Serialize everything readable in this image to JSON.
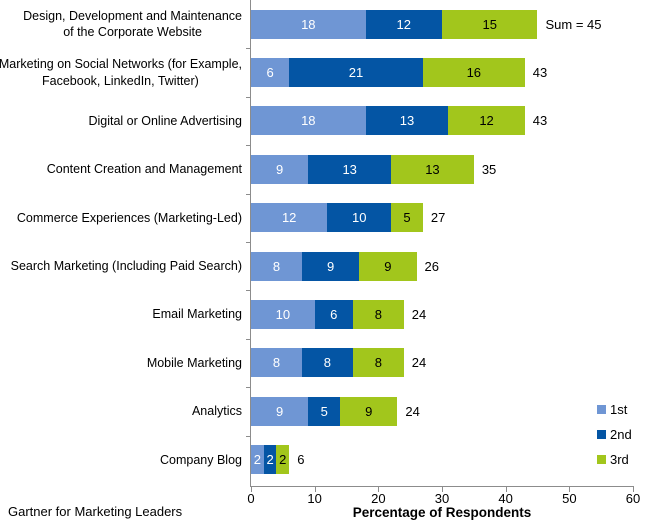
{
  "footer": "Gartner for Marketing Leaders",
  "chart_data": {
    "type": "bar",
    "orientation": "horizontal",
    "stacked": true,
    "title": "",
    "xlabel": "Percentage of Respondents",
    "ylabel": "",
    "xlim": [
      0,
      60
    ],
    "x_ticks": [
      0,
      10,
      20,
      30,
      40,
      50,
      60
    ],
    "grid": false,
    "legend_position": "right-bottom",
    "categories": [
      "Design, Development and Maintenance\nof the Corporate Website",
      "Marketing on Social Networks (for Example,\nFacebook, LinkedIn, Twitter)",
      "Digital or Online Advertising",
      "Content Creation and Management",
      "Commerce Experiences (Marketing-Led)",
      "Search Marketing (Including Paid Search)",
      "Email Marketing",
      "Mobile Marketing",
      "Analytics",
      "Company Blog"
    ],
    "series": [
      {
        "name": "1st",
        "color": "#6f96d4",
        "text_color": "#ffffff",
        "values": [
          18,
          6,
          18,
          9,
          12,
          8,
          10,
          8,
          9,
          2
        ]
      },
      {
        "name": "2nd",
        "color": "#0455a4",
        "text_color": "#ffffff",
        "values": [
          12,
          21,
          13,
          13,
          10,
          9,
          6,
          8,
          5,
          2
        ]
      },
      {
        "name": "3rd",
        "color": "#a2c61c",
        "text_color": "#000000",
        "values": [
          15,
          16,
          12,
          13,
          5,
          9,
          8,
          8,
          9,
          2
        ]
      }
    ],
    "sum_labels": [
      "Sum = 45",
      "43",
      "43",
      "35",
      "27",
      "26",
      "24",
      "24",
      "24",
      "6"
    ]
  }
}
